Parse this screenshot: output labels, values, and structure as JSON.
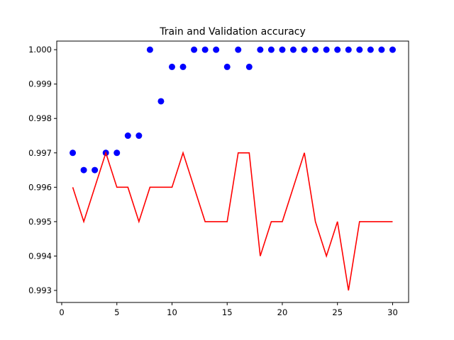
{
  "chart_data": {
    "type": "line",
    "title": "Train and Validation accuracy",
    "xlabel": "",
    "ylabel": "",
    "xlim": [
      -0.45,
      31.45
    ],
    "ylim": [
      0.99265,
      1.00025
    ],
    "x_ticks": [
      0,
      5,
      10,
      15,
      20,
      25,
      30
    ],
    "x_tick_labels": [
      "0",
      "5",
      "10",
      "15",
      "20",
      "25",
      "30"
    ],
    "y_ticks": [
      0.993,
      0.994,
      0.995,
      0.996,
      0.997,
      0.998,
      0.999,
      1.0
    ],
    "y_tick_labels": [
      "0.993",
      "0.994",
      "0.995",
      "0.996",
      "0.997",
      "0.998",
      "0.999",
      "1.000"
    ],
    "grid": false,
    "legend": "none",
    "series": [
      {
        "style": "scatter",
        "color": "#0000ff",
        "x": [
          1,
          2,
          3,
          4,
          5,
          6,
          7,
          8,
          9,
          10,
          11,
          12,
          13,
          14,
          15,
          16,
          17,
          18,
          19,
          20,
          21,
          22,
          23,
          24,
          25,
          26,
          27,
          28,
          29,
          30
        ],
        "values": [
          0.997,
          0.9965,
          0.9965,
          0.997,
          0.997,
          0.9975,
          0.9975,
          1.0,
          0.9985,
          0.9995,
          0.9995,
          1.0,
          1.0,
          1.0,
          0.9995,
          1.0,
          0.9995,
          1.0,
          1.0,
          1.0,
          1.0,
          1.0,
          1.0,
          1.0,
          1.0,
          1.0,
          1.0,
          1.0,
          1.0,
          1.0
        ]
      },
      {
        "style": "line",
        "color": "#ff0000",
        "x": [
          1,
          2,
          3,
          4,
          5,
          6,
          7,
          8,
          9,
          10,
          11,
          12,
          13,
          14,
          15,
          16,
          17,
          18,
          19,
          20,
          21,
          22,
          23,
          24,
          25,
          26,
          27,
          28,
          29,
          30
        ],
        "values": [
          0.996,
          0.995,
          0.996,
          0.997,
          0.996,
          0.996,
          0.995,
          0.996,
          0.996,
          0.996,
          0.997,
          0.996,
          0.995,
          0.995,
          0.995,
          0.997,
          0.997,
          0.994,
          0.995,
          0.995,
          0.996,
          0.997,
          0.995,
          0.994,
          0.995,
          0.993,
          0.995,
          0.995,
          0.995,
          0.995
        ]
      }
    ]
  }
}
